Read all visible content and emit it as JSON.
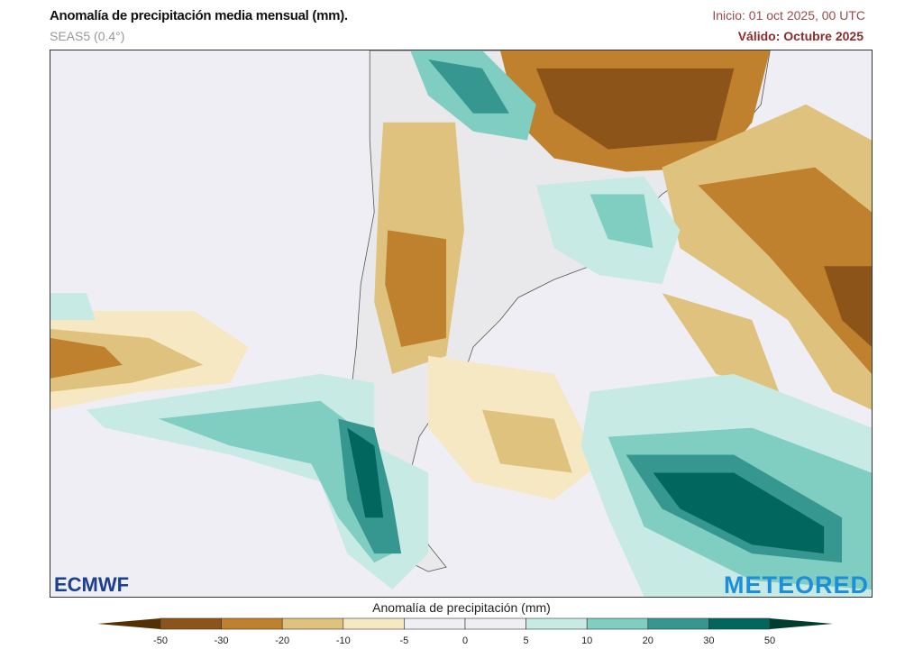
{
  "header": {
    "title": "Anomalía de precipitación media mensual (mm).",
    "model": "SEAS5 (0.4°)",
    "init": "Inicio: 01 oct 2025, 00 UTC",
    "valid": "Válido: Octubre 2025"
  },
  "colorbar": {
    "title": "Anomalía de precipitación (mm)",
    "ticks": [
      "-50",
      "-30",
      "-20",
      "-10",
      "-5",
      "0",
      "5",
      "10",
      "20",
      "30",
      "50"
    ],
    "colors": [
      "#8c5418",
      "#bf812d",
      "#dfc27d",
      "#f6e8c3",
      "#eeeef4",
      "#eeeef4",
      "#c7eae5",
      "#80cdc1",
      "#35978f",
      "#01665e"
    ],
    "under_color": "#543005",
    "over_color": "#003c30"
  },
  "logos": {
    "left": "ECMWF",
    "right": "METEORED"
  }
}
